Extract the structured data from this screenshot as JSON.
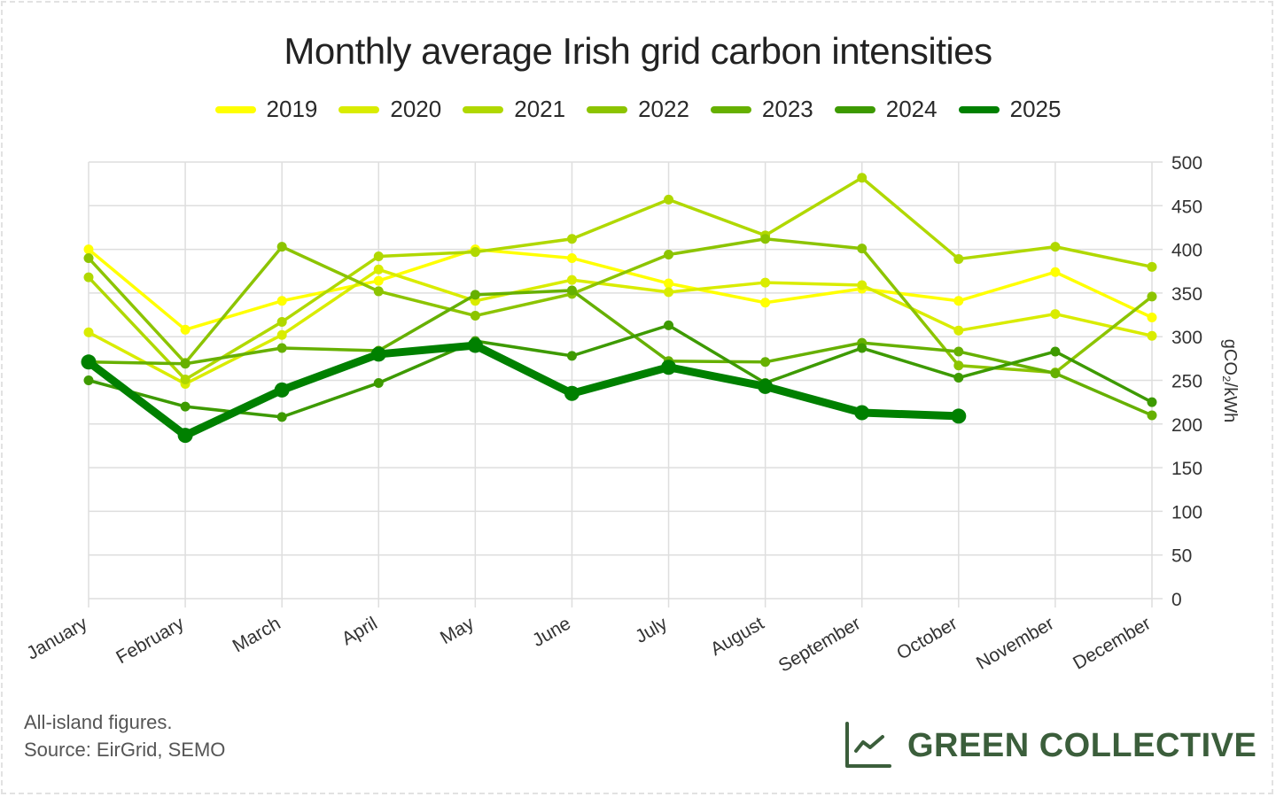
{
  "chart_data": {
    "type": "line",
    "title": "Monthly average Irish grid carbon intensities",
    "xlabel": "",
    "ylabel": "gCO₂/kWh",
    "ylim": [
      0,
      500
    ],
    "yticks": [
      "0",
      "50",
      "100",
      "150",
      "200",
      "250",
      "300",
      "350",
      "400",
      "450",
      "500"
    ],
    "y_axis_side": "right",
    "grid": true,
    "legend_position": "top-center",
    "categories": [
      "January",
      "February",
      "March",
      "April",
      "May",
      "June",
      "July",
      "August",
      "September",
      "October",
      "November",
      "December"
    ],
    "series": [
      {
        "name": "2019",
        "color": "#ffff00",
        "values": [
          400,
          308,
          341,
          364,
          400,
          390,
          361,
          339,
          355,
          341,
          374,
          322
        ]
      },
      {
        "name": "2020",
        "color": "#d9ec00",
        "values": [
          305,
          246,
          302,
          377,
          341,
          365,
          351,
          362,
          359,
          307,
          326,
          301
        ]
      },
      {
        "name": "2021",
        "color": "#b0d800",
        "values": [
          368,
          251,
          317,
          392,
          397,
          412,
          457,
          416,
          482,
          389,
          403,
          380
        ]
      },
      {
        "name": "2022",
        "color": "#8cc400",
        "values": [
          390,
          270,
          403,
          352,
          324,
          349,
          394,
          412,
          401,
          267,
          259,
          346
        ]
      },
      {
        "name": "2023",
        "color": "#66b000",
        "values": [
          271,
          269,
          287,
          284,
          348,
          353,
          272,
          271,
          293,
          283,
          258,
          210
        ]
      },
      {
        "name": "2024",
        "color": "#3d9a00",
        "values": [
          250,
          220,
          208,
          247,
          295,
          278,
          313,
          247,
          287,
          253,
          283,
          225
        ]
      },
      {
        "name": "2025",
        "color": "#008000",
        "values": [
          271,
          187,
          239,
          280,
          290,
          235,
          265,
          243,
          213,
          209,
          null,
          null
        ]
      }
    ]
  },
  "footer": {
    "note_line1": "All-island figures.",
    "note_line2": "Source: EirGrid, SEMO"
  },
  "brand": {
    "name": "GREEN COLLECTIVE",
    "color": "#3b5e3b",
    "icon": "line-chart-icon"
  }
}
